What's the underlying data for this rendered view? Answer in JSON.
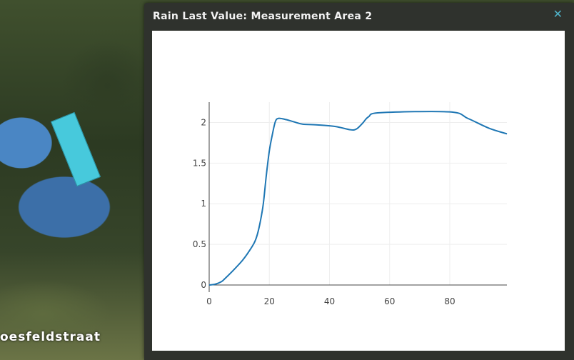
{
  "map": {
    "street_label": "oesfeldstraat"
  },
  "dialog": {
    "title": "Rain Last Value: Measurement Area 2",
    "close_icon": "close-icon"
  },
  "chart_data": {
    "type": "line",
    "title": "",
    "xlabel": "",
    "ylabel": "",
    "xlim": [
      0,
      99
    ],
    "ylim": [
      0,
      2.25
    ],
    "xticks": [
      0,
      20,
      40,
      60,
      80
    ],
    "yticks": [
      0,
      0.5,
      1,
      1.5,
      2
    ],
    "ytick_labels": [
      "0",
      "0.5",
      "1",
      "1.5",
      "2"
    ],
    "grid": true,
    "color": "#1f77b4",
    "x": [
      0,
      2,
      4,
      5,
      8,
      11,
      13,
      15,
      16,
      17,
      18,
      19,
      20,
      21,
      22,
      23,
      25,
      28,
      31,
      36,
      42,
      47,
      49,
      51,
      53,
      57,
      80,
      86,
      93,
      99
    ],
    "y": [
      0,
      0.01,
      0.04,
      0.07,
      0.18,
      0.3,
      0.4,
      0.52,
      0.62,
      0.78,
      1.0,
      1.35,
      1.65,
      1.85,
      2.01,
      2.05,
      2.04,
      2.01,
      1.98,
      1.97,
      1.95,
      1.91,
      1.92,
      1.99,
      2.07,
      2.12,
      2.13,
      2.05,
      1.93,
      1.86
    ]
  }
}
